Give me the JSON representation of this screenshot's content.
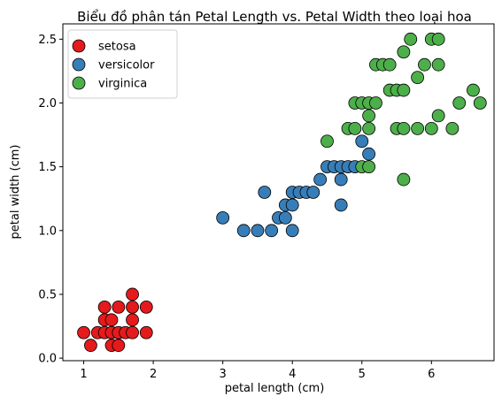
{
  "chart_data": {
    "type": "scatter",
    "title": "Biểu đồ phân tán Petal Length vs. Petal Width theo loại hoa",
    "xlabel": "petal length (cm)",
    "ylabel": "petal width (cm)",
    "xlim": [
      0.7,
      6.9
    ],
    "ylim": [
      -0.02,
      2.62
    ],
    "xticks": [
      1,
      2,
      3,
      4,
      5,
      6
    ],
    "yticks": [
      0.0,
      0.5,
      1.0,
      1.5,
      2.0,
      2.5
    ],
    "xtick_labels": [
      "1",
      "2",
      "3",
      "4",
      "5",
      "6"
    ],
    "ytick_labels": [
      "0.0",
      "0.5",
      "1.0",
      "1.5",
      "2.0",
      "2.5"
    ],
    "grid": false,
    "legend_position": "top-left",
    "series": [
      {
        "name": "setosa",
        "color": "#e41a1c",
        "points": [
          [
            1.0,
            0.2
          ],
          [
            1.1,
            0.1
          ],
          [
            1.2,
            0.2
          ],
          [
            1.3,
            0.2
          ],
          [
            1.3,
            0.3
          ],
          [
            1.3,
            0.4
          ],
          [
            1.4,
            0.1
          ],
          [
            1.4,
            0.2
          ],
          [
            1.4,
            0.3
          ],
          [
            1.5,
            0.1
          ],
          [
            1.5,
            0.2
          ],
          [
            1.5,
            0.4
          ],
          [
            1.6,
            0.2
          ],
          [
            1.7,
            0.2
          ],
          [
            1.7,
            0.3
          ],
          [
            1.7,
            0.4
          ],
          [
            1.7,
            0.5
          ],
          [
            1.9,
            0.2
          ],
          [
            1.9,
            0.4
          ]
        ]
      },
      {
        "name": "versicolor",
        "color": "#377eb8",
        "points": [
          [
            3.0,
            1.1
          ],
          [
            3.3,
            1.0
          ],
          [
            3.5,
            1.0
          ],
          [
            3.6,
            1.3
          ],
          [
            3.7,
            1.0
          ],
          [
            3.8,
            1.1
          ],
          [
            3.9,
            1.1
          ],
          [
            3.9,
            1.2
          ],
          [
            4.0,
            1.0
          ],
          [
            4.0,
            1.2
          ],
          [
            4.0,
            1.3
          ],
          [
            4.1,
            1.3
          ],
          [
            4.2,
            1.3
          ],
          [
            4.3,
            1.3
          ],
          [
            4.4,
            1.4
          ],
          [
            4.5,
            1.5
          ],
          [
            4.6,
            1.5
          ],
          [
            4.7,
            1.2
          ],
          [
            4.7,
            1.4
          ],
          [
            4.7,
            1.5
          ],
          [
            4.8,
            1.5
          ],
          [
            4.9,
            1.5
          ],
          [
            5.0,
            1.7
          ],
          [
            5.1,
            1.6
          ]
        ]
      },
      {
        "name": "virginica",
        "color": "#4daf4a",
        "points": [
          [
            4.5,
            1.7
          ],
          [
            4.8,
            1.8
          ],
          [
            4.9,
            1.8
          ],
          [
            4.9,
            2.0
          ],
          [
            5.0,
            1.5
          ],
          [
            5.0,
            2.0
          ],
          [
            5.1,
            1.5
          ],
          [
            5.1,
            1.8
          ],
          [
            5.1,
            1.9
          ],
          [
            5.1,
            2.0
          ],
          [
            5.2,
            2.0
          ],
          [
            5.2,
            2.3
          ],
          [
            5.3,
            2.3
          ],
          [
            5.4,
            2.3
          ],
          [
            5.4,
            2.1
          ],
          [
            5.5,
            2.1
          ],
          [
            5.5,
            1.8
          ],
          [
            5.6,
            1.8
          ],
          [
            5.6,
            1.4
          ],
          [
            5.6,
            2.1
          ],
          [
            5.6,
            2.4
          ],
          [
            5.7,
            2.5
          ],
          [
            5.8,
            1.8
          ],
          [
            5.8,
            2.2
          ],
          [
            5.9,
            2.3
          ],
          [
            6.0,
            1.8
          ],
          [
            6.0,
            2.5
          ],
          [
            6.1,
            1.9
          ],
          [
            6.1,
            2.3
          ],
          [
            6.1,
            2.5
          ],
          [
            6.3,
            1.8
          ],
          [
            6.4,
            2.0
          ],
          [
            6.6,
            2.1
          ],
          [
            6.7,
            2.0
          ]
        ]
      }
    ]
  }
}
